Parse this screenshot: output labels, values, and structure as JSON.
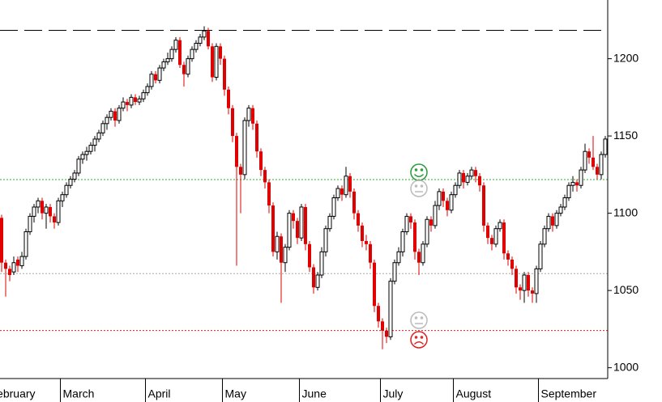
{
  "chart_data": {
    "type": "candlestick",
    "months": [
      "February",
      "March",
      "April",
      "May",
      "June",
      "July",
      "August",
      "September"
    ],
    "month_starts": [
      -3,
      15,
      36,
      55,
      74,
      94,
      112,
      133
    ],
    "ylim": [
      993,
      1238
    ],
    "yticks": [
      1000,
      1050,
      1100,
      1150,
      1200
    ],
    "up_color": "#000000",
    "down_color": "#e00000",
    "hlines": [
      {
        "value": 1218.4,
        "color": "#000000",
        "style": "dashed"
      },
      {
        "value": 1121.8,
        "color": "#33aa33",
        "style": "dotted"
      },
      {
        "value": 1060.9,
        "color": "#aaaaaa",
        "style": "dotted"
      },
      {
        "value": 1024.1,
        "color": "#dd2222",
        "style": "dotted"
      }
    ],
    "candles": [
      [
        1097,
        1099,
        1062,
        1068
      ],
      [
        1068,
        1070,
        1046,
        1064
      ],
      [
        1064,
        1066,
        1056,
        1060
      ],
      [
        1062,
        1072,
        1060,
        1068
      ],
      [
        1070,
        1072,
        1062,
        1066
      ],
      [
        1066,
        1075,
        1064,
        1072
      ],
      [
        1072,
        1090,
        1070,
        1088
      ],
      [
        1088,
        1100,
        1086,
        1098
      ],
      [
        1098,
        1106,
        1094,
        1104
      ],
      [
        1104,
        1110,
        1100,
        1108
      ],
      [
        1108,
        1110,
        1096,
        1100
      ],
      [
        1100,
        1106,
        1090,
        1104
      ],
      [
        1104,
        1106,
        1094,
        1098
      ],
      [
        1098,
        1100,
        1090,
        1094
      ],
      [
        1094,
        1110,
        1092,
        1108
      ],
      [
        1108,
        1114,
        1104,
        1112
      ],
      [
        1112,
        1120,
        1110,
        1118
      ],
      [
        1118,
        1124,
        1116,
        1122
      ],
      [
        1122,
        1128,
        1120,
        1126
      ],
      [
        1126,
        1137,
        1124,
        1135
      ],
      [
        1135,
        1140,
        1132,
        1138
      ],
      [
        1138,
        1143,
        1134,
        1140
      ],
      [
        1140,
        1146,
        1138,
        1144
      ],
      [
        1144,
        1150,
        1140,
        1148
      ],
      [
        1148,
        1154,
        1146,
        1152
      ],
      [
        1152,
        1160,
        1150,
        1158
      ],
      [
        1158,
        1164,
        1154,
        1162
      ],
      [
        1162,
        1168,
        1160,
        1166
      ],
      [
        1166,
        1168,
        1156,
        1160
      ],
      [
        1160,
        1170,
        1158,
        1168
      ],
      [
        1168,
        1175,
        1166,
        1172
      ],
      [
        1172,
        1174,
        1166,
        1170
      ],
      [
        1170,
        1177,
        1168,
        1175
      ],
      [
        1175,
        1177,
        1170,
        1172
      ],
      [
        1172,
        1176,
        1170,
        1174
      ],
      [
        1174,
        1180,
        1172,
        1178
      ],
      [
        1178,
        1184,
        1176,
        1182
      ],
      [
        1182,
        1192,
        1180,
        1190
      ],
      [
        1190,
        1192,
        1184,
        1186
      ],
      [
        1186,
        1196,
        1184,
        1194
      ],
      [
        1194,
        1200,
        1192,
        1198
      ],
      [
        1198,
        1204,
        1196,
        1200
      ],
      [
        1200,
        1208,
        1198,
        1206
      ],
      [
        1206,
        1214,
        1204,
        1212
      ],
      [
        1212,
        1214,
        1194,
        1196
      ],
      [
        1196,
        1198,
        1182,
        1190
      ],
      [
        1190,
        1202,
        1188,
        1200
      ],
      [
        1200,
        1208,
        1198,
        1206
      ],
      [
        1206,
        1212,
        1204,
        1210
      ],
      [
        1210,
        1216,
        1208,
        1214
      ],
      [
        1214,
        1221,
        1212,
        1218
      ],
      [
        1218,
        1220,
        1206,
        1208
      ],
      [
        1208,
        1210,
        1185,
        1188
      ],
      [
        1188,
        1210,
        1186,
        1208
      ],
      [
        1208,
        1210,
        1196,
        1200
      ],
      [
        1200,
        1202,
        1176,
        1180
      ],
      [
        1180,
        1182,
        1164,
        1168
      ],
      [
        1168,
        1170,
        1146,
        1150
      ],
      [
        1150,
        1152,
        1066,
        1130
      ],
      [
        1130,
        1132,
        1100,
        1125
      ],
      [
        1125,
        1162,
        1122,
        1160
      ],
      [
        1160,
        1170,
        1156,
        1168
      ],
      [
        1168,
        1170,
        1154,
        1158
      ],
      [
        1158,
        1160,
        1136,
        1140
      ],
      [
        1140,
        1142,
        1124,
        1128
      ],
      [
        1128,
        1130,
        1116,
        1120
      ],
      [
        1120,
        1122,
        1100,
        1105
      ],
      [
        1105,
        1107,
        1072,
        1075
      ],
      [
        1075,
        1088,
        1070,
        1085
      ],
      [
        1085,
        1087,
        1042,
        1068
      ],
      [
        1068,
        1080,
        1062,
        1078
      ],
      [
        1078,
        1102,
        1076,
        1100
      ],
      [
        1100,
        1102,
        1090,
        1095
      ],
      [
        1095,
        1097,
        1080,
        1084
      ],
      [
        1084,
        1106,
        1082,
        1104
      ],
      [
        1104,
        1106,
        1076,
        1080
      ],
      [
        1080,
        1082,
        1062,
        1065
      ],
      [
        1065,
        1067,
        1048,
        1052
      ],
      [
        1052,
        1062,
        1050,
        1060
      ],
      [
        1060,
        1078,
        1058,
        1075
      ],
      [
        1075,
        1092,
        1072,
        1090
      ],
      [
        1090,
        1100,
        1088,
        1098
      ],
      [
        1098,
        1112,
        1096,
        1110
      ],
      [
        1110,
        1118,
        1108,
        1116
      ],
      [
        1116,
        1118,
        1108,
        1112
      ],
      [
        1112,
        1130,
        1110,
        1124
      ],
      [
        1124,
        1126,
        1110,
        1114
      ],
      [
        1114,
        1116,
        1096,
        1100
      ],
      [
        1100,
        1102,
        1088,
        1092
      ],
      [
        1092,
        1094,
        1078,
        1082
      ],
      [
        1082,
        1086,
        1076,
        1080
      ],
      [
        1080,
        1082,
        1064,
        1068
      ],
      [
        1068,
        1070,
        1036,
        1040
      ],
      [
        1040,
        1042,
        1026,
        1030
      ],
      [
        1030,
        1032,
        1012,
        1024
      ],
      [
        1024,
        1026,
        1016,
        1020
      ],
      [
        1020,
        1058,
        1018,
        1056
      ],
      [
        1056,
        1070,
        1054,
        1068
      ],
      [
        1068,
        1078,
        1066,
        1075
      ],
      [
        1075,
        1090,
        1072,
        1088
      ],
      [
        1088,
        1100,
        1086,
        1098
      ],
      [
        1098,
        1100,
        1090,
        1094
      ],
      [
        1094,
        1096,
        1070,
        1075
      ],
      [
        1075,
        1077,
        1060,
        1068
      ],
      [
        1068,
        1082,
        1066,
        1080
      ],
      [
        1080,
        1098,
        1078,
        1096
      ],
      [
        1096,
        1098,
        1088,
        1092
      ],
      [
        1092,
        1108,
        1090,
        1105
      ],
      [
        1105,
        1116,
        1102,
        1114
      ],
      [
        1114,
        1116,
        1104,
        1108
      ],
      [
        1108,
        1110,
        1098,
        1102
      ],
      [
        1102,
        1114,
        1100,
        1112
      ],
      [
        1112,
        1120,
        1110,
        1118
      ],
      [
        1118,
        1128,
        1116,
        1126
      ],
      [
        1126,
        1128,
        1116,
        1120
      ],
      [
        1120,
        1126,
        1118,
        1124
      ],
      [
        1124,
        1130,
        1122,
        1128
      ],
      [
        1128,
        1130,
        1120,
        1124
      ],
      [
        1124,
        1126,
        1114,
        1118
      ],
      [
        1118,
        1120,
        1088,
        1092
      ],
      [
        1092,
        1094,
        1080,
        1084
      ],
      [
        1084,
        1086,
        1076,
        1080
      ],
      [
        1080,
        1092,
        1078,
        1090
      ],
      [
        1090,
        1096,
        1088,
        1094
      ],
      [
        1094,
        1096,
        1070,
        1074
      ],
      [
        1074,
        1076,
        1066,
        1070
      ],
      [
        1070,
        1072,
        1060,
        1064
      ],
      [
        1064,
        1066,
        1048,
        1052
      ],
      [
        1052,
        1054,
        1044,
        1050
      ],
      [
        1050,
        1062,
        1042,
        1060
      ],
      [
        1060,
        1062,
        1046,
        1050
      ],
      [
        1050,
        1052,
        1042,
        1048
      ],
      [
        1048,
        1066,
        1042,
        1064
      ],
      [
        1064,
        1082,
        1062,
        1080
      ],
      [
        1080,
        1092,
        1078,
        1090
      ],
      [
        1090,
        1100,
        1088,
        1098
      ],
      [
        1098,
        1100,
        1088,
        1092
      ],
      [
        1092,
        1102,
        1090,
        1100
      ],
      [
        1100,
        1106,
        1098,
        1104
      ],
      [
        1104,
        1112,
        1102,
        1110
      ],
      [
        1110,
        1120,
        1108,
        1118
      ],
      [
        1118,
        1124,
        1114,
        1120
      ],
      [
        1120,
        1122,
        1114,
        1118
      ],
      [
        1118,
        1130,
        1116,
        1128
      ],
      [
        1128,
        1145,
        1126,
        1140
      ],
      [
        1140,
        1142,
        1132,
        1136
      ],
      [
        1136,
        1150,
        1128,
        1130
      ],
      [
        1130,
        1132,
        1122,
        1125
      ],
      [
        1125,
        1140,
        1122,
        1138
      ],
      [
        1138,
        1150,
        1136,
        1148
      ]
    ]
  }
}
